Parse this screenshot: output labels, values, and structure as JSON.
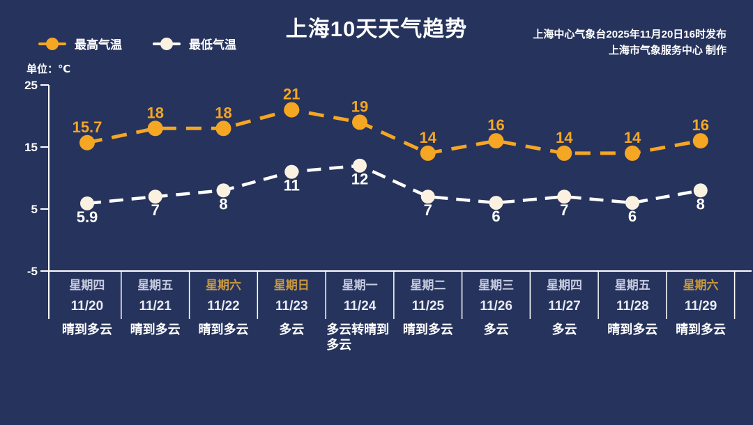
{
  "header": {
    "title": "上海10天天气趋势",
    "publisher_line1": "上海中心气象台2025年11月20日16时发布",
    "publisher_line2": "上海市气象服务中心 制作",
    "unit_label": "单位：℃"
  },
  "colors": {
    "background": "#26335C",
    "high_line": "#F5A623",
    "high_label": "#F5A623",
    "low_line": "#FFFFFF",
    "low_marker": "#FAF1E0",
    "axis": "#FFFFFF",
    "weekday_text": "#C6CBDF",
    "weekend_text": "#C9993F",
    "date_text": "#E8EAF2",
    "condition_text": "#FFFFFF"
  },
  "chart_data": {
    "type": "line",
    "title": "上海10天天气趋势",
    "unit": "℃",
    "ylim": [
      -5,
      25
    ],
    "y_ticks": [
      25,
      15,
      5,
      -5
    ],
    "grid": false,
    "legend_position": "top-left",
    "line_style": "dashed",
    "categories": [
      {
        "weekday": "星期四",
        "date": "11/20",
        "condition": "晴到多云",
        "weekend": false
      },
      {
        "weekday": "星期五",
        "date": "11/21",
        "condition": "晴到多云",
        "weekend": false
      },
      {
        "weekday": "星期六",
        "date": "11/22",
        "condition": "晴到多云",
        "weekend": true
      },
      {
        "weekday": "星期日",
        "date": "11/23",
        "condition": "多云",
        "weekend": true
      },
      {
        "weekday": "星期一",
        "date": "11/24",
        "condition": "多云转晴到多云",
        "weekend": false
      },
      {
        "weekday": "星期二",
        "date": "11/25",
        "condition": "晴到多云",
        "weekend": false
      },
      {
        "weekday": "星期三",
        "date": "11/26",
        "condition": "多云",
        "weekend": false
      },
      {
        "weekday": "星期四",
        "date": "11/27",
        "condition": "多云",
        "weekend": false
      },
      {
        "weekday": "星期五",
        "date": "11/28",
        "condition": "晴到多云",
        "weekend": false
      },
      {
        "weekday": "星期六",
        "date": "11/29",
        "condition": "晴到多云",
        "weekend": true
      }
    ],
    "series": [
      {
        "name": "最高气温",
        "color": "#F5A623",
        "marker_color": "#F5A623",
        "values": [
          15.7,
          18,
          18,
          21,
          19,
          14,
          16,
          14,
          14,
          16
        ]
      },
      {
        "name": "最低气温",
        "color": "#FFFFFF",
        "marker_color": "#FAF1E0",
        "values": [
          5.9,
          7,
          8,
          11,
          12,
          7,
          6,
          7,
          6,
          8
        ]
      }
    ]
  }
}
